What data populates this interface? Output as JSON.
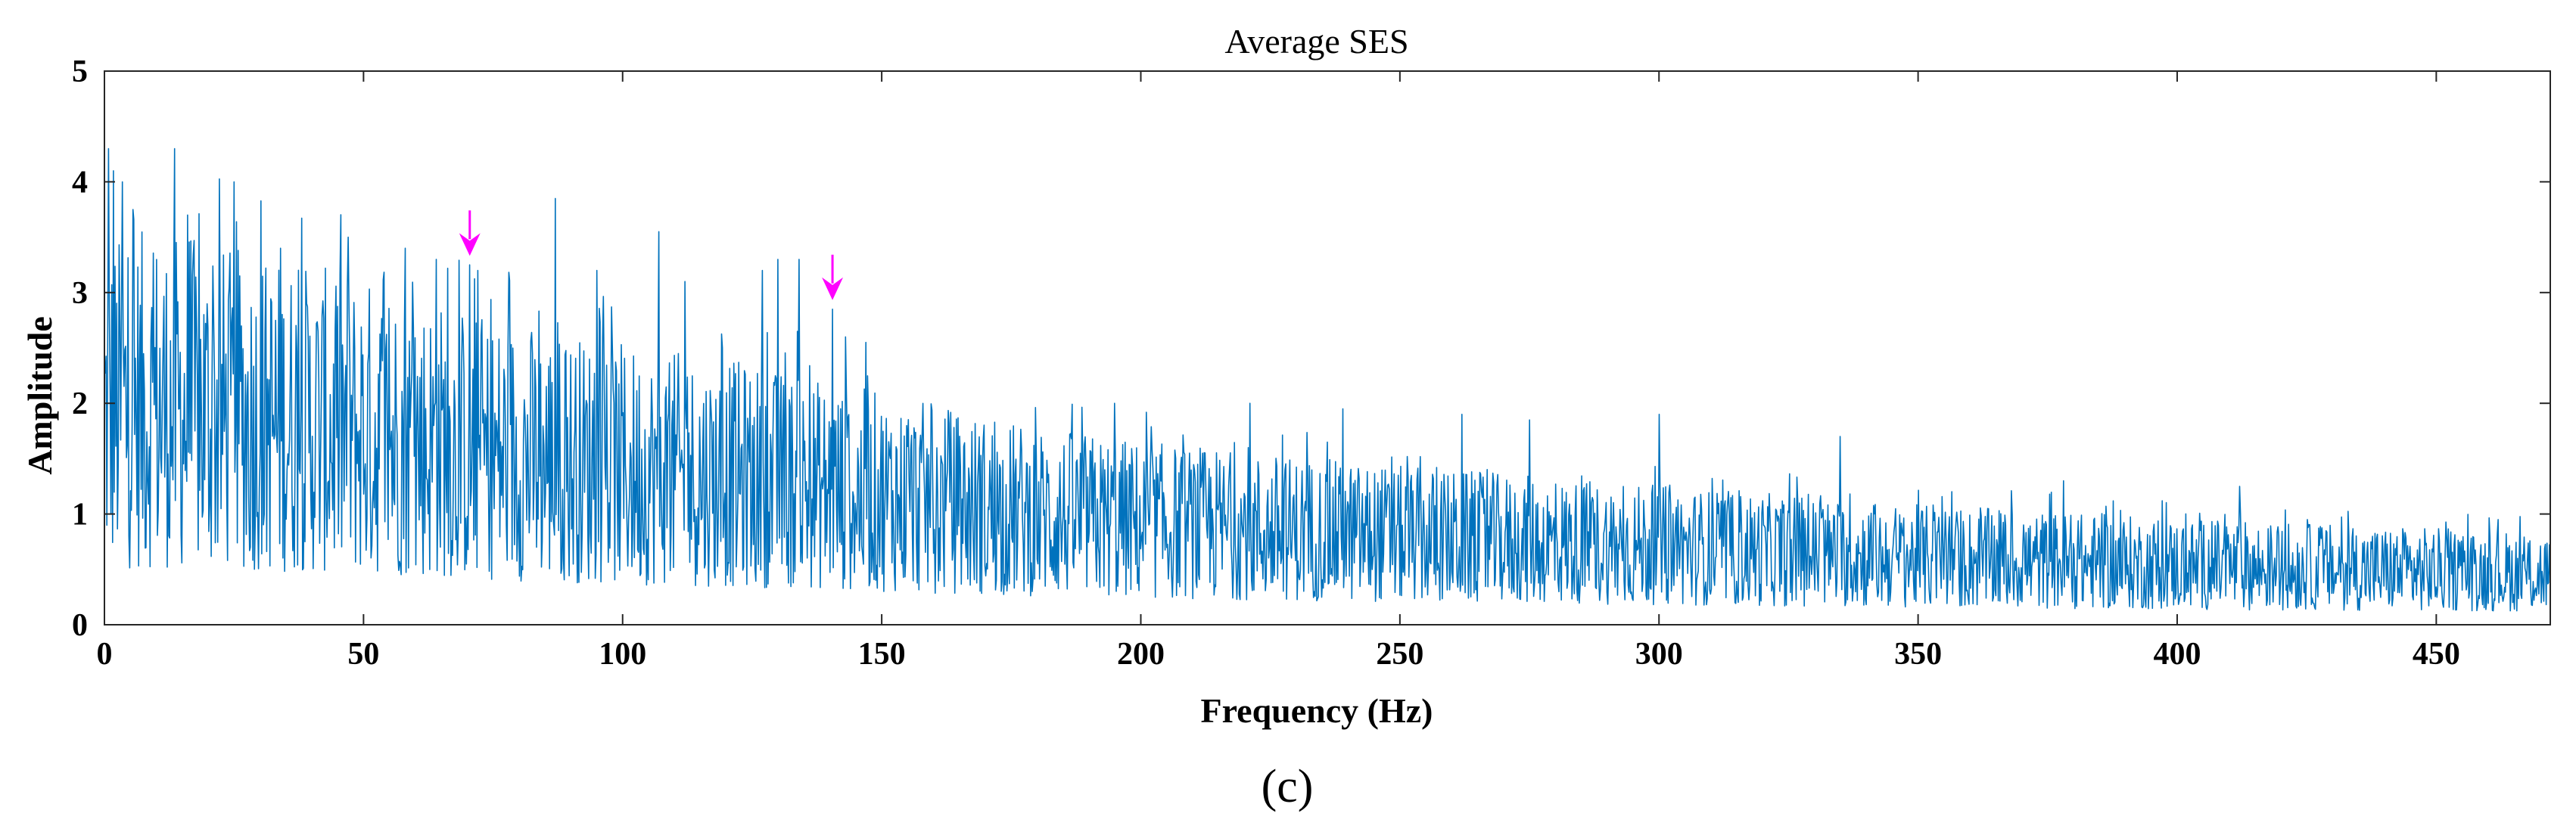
{
  "chart_data": {
    "type": "line",
    "title": "Average SES",
    "xlabel": "Frequency (Hz)",
    "ylabel": "Amplitude",
    "xlim": [
      0,
      472
    ],
    "ylim": [
      0,
      5
    ],
    "xticks": [
      0,
      50,
      100,
      150,
      200,
      250,
      300,
      350,
      400,
      450
    ],
    "yticks": [
      0,
      1,
      2,
      3,
      4,
      5
    ],
    "grid": false,
    "series": [
      {
        "name": "Average SES",
        "color": "#0072BD",
        "trend_x": [
          0,
          10,
          25,
          50,
          75,
          100,
          125,
          150,
          175,
          200,
          250,
          300,
          350,
          400,
          472
        ],
        "trend_y": [
          2.0,
          2.05,
          1.95,
          1.8,
          1.6,
          1.45,
          1.35,
          1.2,
          1.05,
          0.95,
          0.82,
          0.72,
          0.62,
          0.55,
          0.48
        ],
        "peaks_x": [
          0.8,
          1.8,
          3.5,
          5.5,
          13.5,
          16,
          25,
          34,
          47,
          58,
          64,
          70.5,
          72,
          87,
          95,
          107,
          112,
          127,
          130,
          134,
          140.5,
          143,
          147,
          195,
          221,
          239,
          262,
          275,
          300,
          335,
          378,
          412,
          462
        ],
        "peaks_y": [
          4.3,
          4.1,
          4.0,
          3.75,
          4.3,
          3.7,
          4.0,
          3.4,
          3.5,
          3.4,
          3.3,
          3.25,
          3.2,
          3.85,
          3.2,
          3.55,
          3.1,
          3.2,
          3.3,
          3.3,
          2.85,
          2.6,
          2.55,
          2.0,
          2.0,
          1.95,
          1.9,
          1.85,
          1.9,
          1.7,
          1.3,
          1.25,
          0.95
        ]
      }
    ],
    "annotations": [
      {
        "type": "arrow",
        "x": 70.5,
        "y": 3.25,
        "color": "#FF00FF"
      },
      {
        "type": "arrow",
        "x": 140.5,
        "y": 2.85,
        "color": "#FF00FF"
      }
    ]
  },
  "panel_label": "(c)"
}
